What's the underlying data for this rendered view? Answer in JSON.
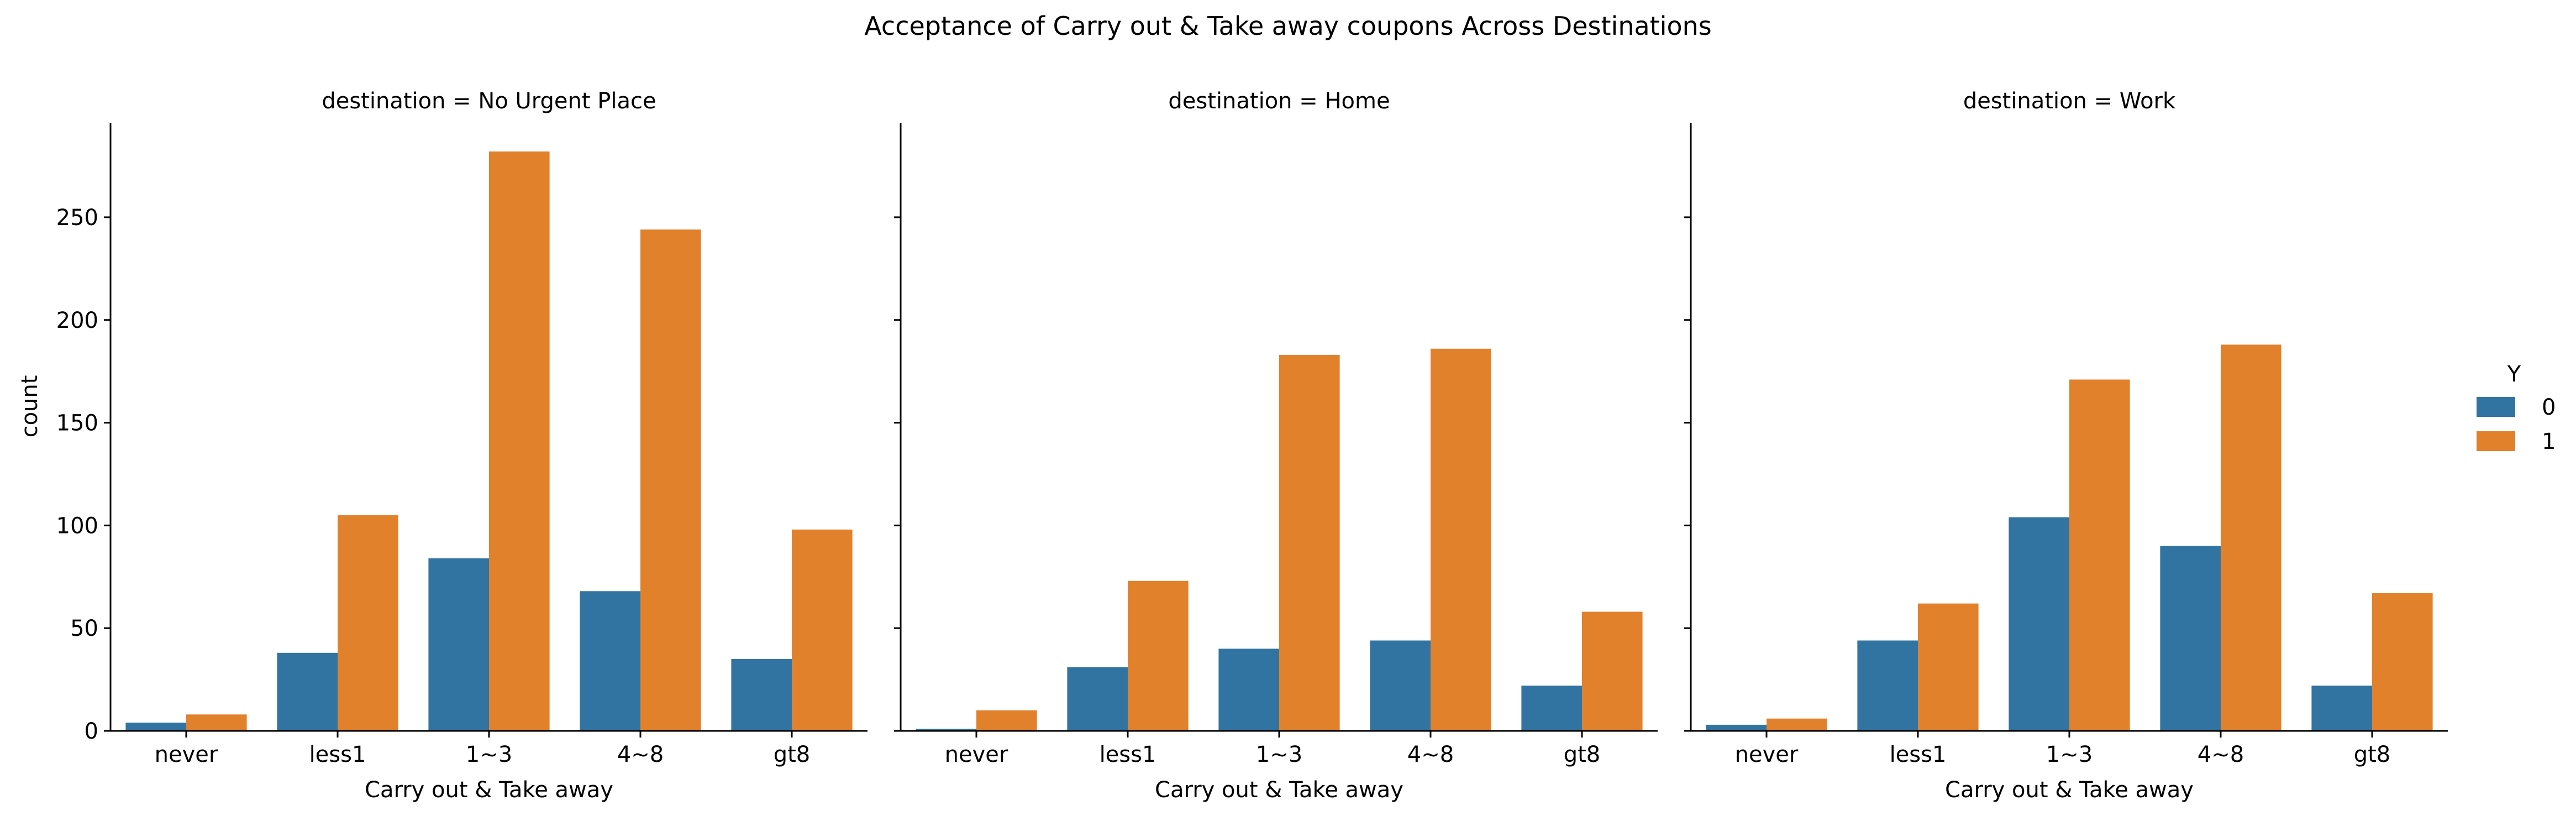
{
  "chart_data": {
    "type": "bar",
    "title": "Acceptance of Carry out & Take away coupons Across Destinations",
    "xlabel": "Carry out & Take away",
    "ylabel": "count",
    "categories": [
      "never",
      "less1",
      "1~3",
      "4~8",
      "gt8"
    ],
    "ylim": [
      0,
      296
    ],
    "yticks": [
      0,
      50,
      100,
      150,
      200,
      250
    ],
    "grid": false,
    "legend": {
      "title": "Y",
      "placement": "right"
    },
    "colors": {
      "0": "#3274a1",
      "1": "#e1812c"
    },
    "panels": [
      {
        "title": "destination = No Urgent Place",
        "series": [
          {
            "name": "0",
            "values": [
              4,
              38,
              84,
              68,
              35
            ]
          },
          {
            "name": "1",
            "values": [
              8,
              105,
              282,
              244,
              98
            ]
          }
        ]
      },
      {
        "title": "destination = Home",
        "series": [
          {
            "name": "0",
            "values": [
              1,
              31,
              40,
              44,
              22
            ]
          },
          {
            "name": "1",
            "values": [
              10,
              73,
              183,
              186,
              58
            ]
          }
        ]
      },
      {
        "title": "destination = Work",
        "series": [
          {
            "name": "0",
            "values": [
              3,
              44,
              104,
              90,
              22
            ]
          },
          {
            "name": "1",
            "values": [
              6,
              62,
              171,
              188,
              67
            ]
          }
        ]
      }
    ]
  }
}
